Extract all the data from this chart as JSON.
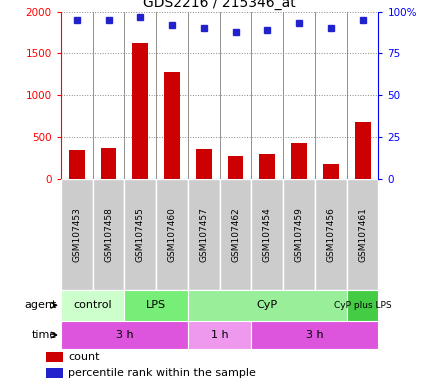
{
  "title": "GDS2216 / 215346_at",
  "samples": [
    "GSM107453",
    "GSM107458",
    "GSM107455",
    "GSM107460",
    "GSM107457",
    "GSM107462",
    "GSM107454",
    "GSM107459",
    "GSM107456",
    "GSM107461"
  ],
  "counts": [
    340,
    370,
    1620,
    1275,
    350,
    270,
    300,
    420,
    175,
    680
  ],
  "percentiles": [
    95,
    95,
    97,
    92,
    90,
    88,
    89,
    93,
    90,
    95
  ],
  "ylim_left": [
    0,
    2000
  ],
  "ylim_right": [
    0,
    100
  ],
  "yticks_left": [
    0,
    500,
    1000,
    1500,
    2000
  ],
  "yticks_right": [
    0,
    25,
    50,
    75,
    100
  ],
  "bar_color": "#cc0000",
  "dot_color": "#2222cc",
  "agent_groups": [
    {
      "label": "control",
      "start": 0,
      "end": 2,
      "color": "#ccffcc"
    },
    {
      "label": "LPS",
      "start": 2,
      "end": 4,
      "color": "#77ee77"
    },
    {
      "label": "CyP",
      "start": 4,
      "end": 9,
      "color": "#99ee99"
    },
    {
      "label": "CyP plus LPS",
      "start": 9,
      "end": 10,
      "color": "#44cc44"
    }
  ],
  "time_groups": [
    {
      "label": "3 h",
      "start": 0,
      "end": 4,
      "color": "#dd55dd"
    },
    {
      "label": "1 h",
      "start": 4,
      "end": 6,
      "color": "#ee99ee"
    },
    {
      "label": "3 h",
      "start": 6,
      "end": 10,
      "color": "#dd55dd"
    }
  ],
  "bg_color": "#ffffff",
  "label_bg": "#cccccc",
  "grid_line_color": "#888888",
  "separator_color": "#666666"
}
